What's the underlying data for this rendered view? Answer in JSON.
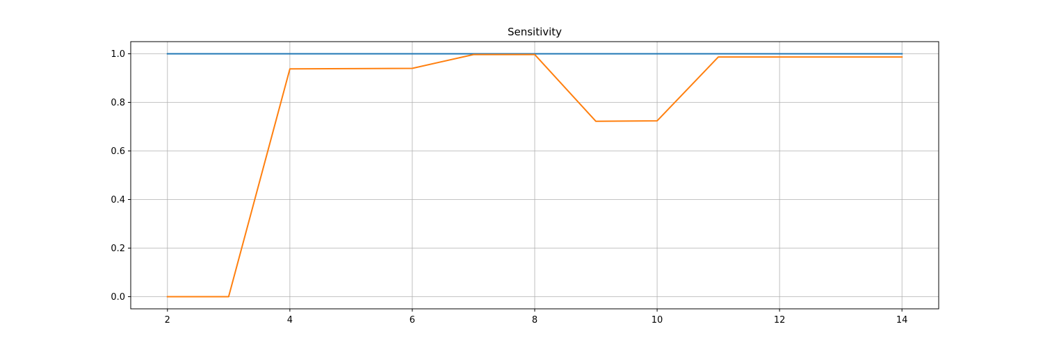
{
  "chart_data": {
    "type": "line",
    "title": "Sensitivity",
    "xlabel": "",
    "ylabel": "",
    "xlim": [
      1.4,
      14.6
    ],
    "ylim": [
      -0.05,
      1.05
    ],
    "x_ticks": [
      2,
      4,
      6,
      8,
      10,
      12,
      14
    ],
    "y_ticks": [
      0.0,
      0.2,
      0.4,
      0.6,
      0.8,
      1.0
    ],
    "x_tick_labels": [
      "2",
      "4",
      "6",
      "8",
      "10",
      "12",
      "14"
    ],
    "y_tick_labels": [
      "0.0",
      "0.2",
      "0.4",
      "0.6",
      "0.8",
      "1.0"
    ],
    "grid": true,
    "legend": "none",
    "series": [
      {
        "color": "#1f77b4",
        "x": [
          2,
          3,
          4,
          5,
          6,
          7,
          8,
          9,
          10,
          11,
          12,
          13,
          14
        ],
        "y": [
          1.0,
          1.0,
          1.0,
          1.0,
          1.0,
          1.0,
          1.0,
          1.0,
          1.0,
          1.0,
          1.0,
          1.0,
          1.0
        ]
      },
      {
        "color": "#ff7f0e",
        "x": [
          2,
          3,
          4,
          5,
          6,
          7,
          8,
          9,
          10,
          11,
          12,
          13,
          14
        ],
        "y": [
          0.0,
          0.0,
          0.938,
          0.939,
          0.94,
          0.997,
          0.997,
          0.722,
          0.724,
          0.987,
          0.987,
          0.987,
          0.987
        ]
      }
    ]
  }
}
